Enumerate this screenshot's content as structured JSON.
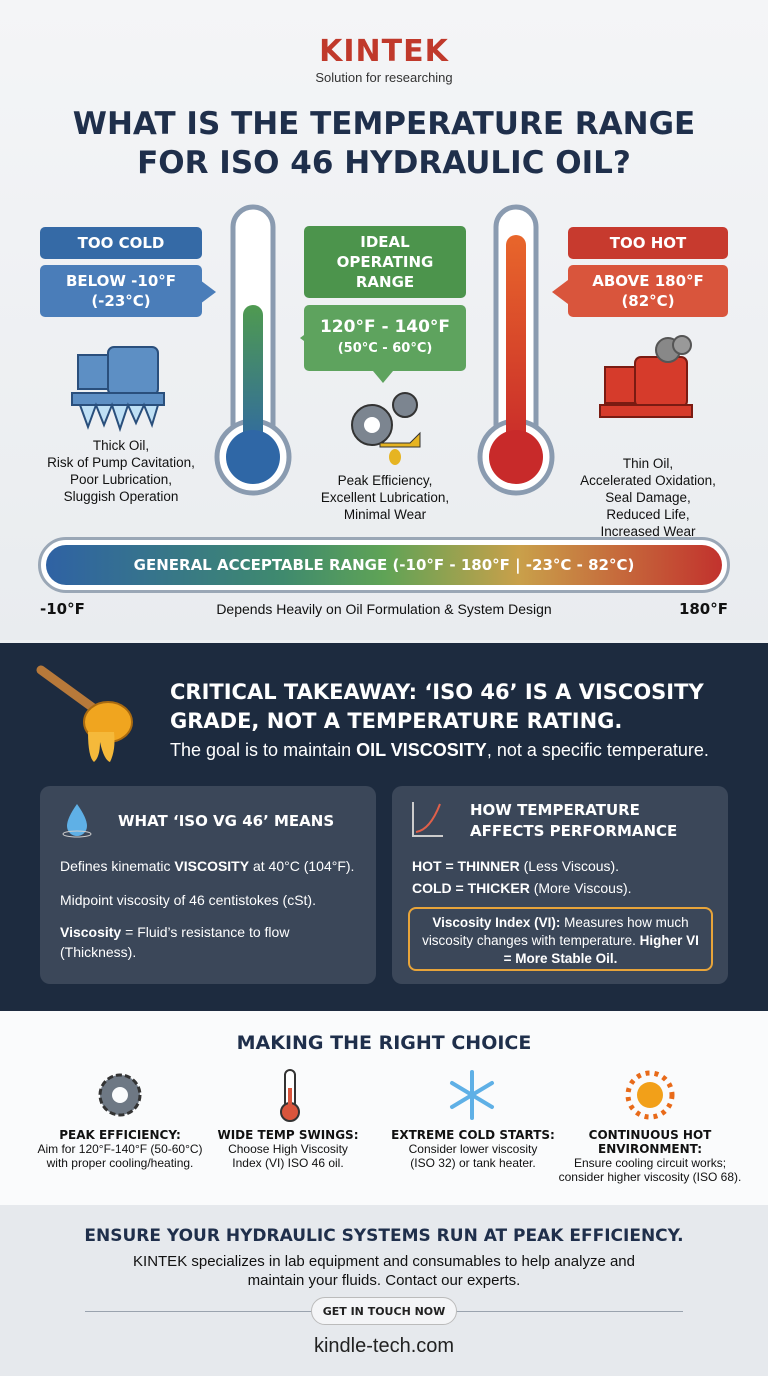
{
  "header": {
    "brand": "KINTEK",
    "tagline": "Solution for researching",
    "title": [
      "WHAT IS THE TEMPERATURE RANGE",
      "FOR ISO 46 HYDRAULIC OIL?"
    ]
  },
  "zones": {
    "cold": {
      "label": "TOO COLD",
      "range": [
        "BELOW -10°F",
        "(-23°C)"
      ],
      "description": [
        "Thick Oil,",
        "Risk of Pump Cavitation,",
        "Poor Lubrication,",
        "Sluggish Operation"
      ]
    },
    "ideal": {
      "label": [
        "IDEAL",
        "OPERATING",
        "RANGE"
      ],
      "range": [
        "120°F - 140°F",
        "(50°C - 60°C)"
      ],
      "description": [
        "Peak Efficiency,",
        "Excellent Lubrication,",
        "Minimal Wear"
      ]
    },
    "hot": {
      "label": "TOO HOT",
      "range": [
        "ABOVE 180°F",
        "(82°C)"
      ],
      "description": [
        "Thin Oil,",
        "Accelerated Oxidation,",
        "Seal Damage,",
        "Reduced Life,",
        "Increased Wear"
      ]
    }
  },
  "general": {
    "bar": "GENERAL ACCEPTABLE RANGE (-10°F - 180°F | -23°C - 82°C)",
    "left": "-10°F",
    "note": "Depends Heavily on Oil Formulation & System Design",
    "right": "180°F"
  },
  "takeaway": {
    "title": [
      "CRITICAL TAKEAWAY: ‘ISO 46’ IS A VISCOSITY",
      "GRADE, NOT A TEMPERATURE RATING."
    ],
    "subtitle": [
      "The goal is to maintain ",
      "OIL VISCOSITY",
      ", not a specific temperature."
    ],
    "cards": [
      {
        "title": [
          "WHAT ‘ISO VG 46’ MEANS"
        ],
        "items": [
          [
            "Defines kinematic ",
            "VISCOSITY",
            " at 40°C (104°F)."
          ],
          [
            "Midpoint viscosity of 46 centistokes (cSt)."
          ],
          [
            "Viscosity",
            " = Fluid’s resistance to flow (Thickness)."
          ]
        ]
      },
      {
        "title": [
          "HOW TEMPERATURE",
          "AFFECTS PERFORMANCE"
        ],
        "items": [
          [
            "HOT = THINNER",
            " (Less Viscous)."
          ],
          [
            "COLD = THICKER",
            " (More Viscous)."
          ]
        ],
        "note": [
          "Viscosity Index (VI):",
          " Measures how much viscosity changes with temperature. ",
          "Higher VI = More Stable Oil."
        ]
      }
    ]
  },
  "choice": {
    "title": "MAKING THE RIGHT CHOICE",
    "items": [
      {
        "title": [
          "PEAK EFFICIENCY:"
        ],
        "text": [
          "Aim for 120°F-140°F (50-60°C)",
          "with proper cooling/heating."
        ]
      },
      {
        "title": [
          "WIDE TEMP SWINGS:"
        ],
        "text": [
          "Choose High Viscosity",
          "Index (VI) ISO 46 oil."
        ]
      },
      {
        "title": [
          "EXTREME COLD STARTS:"
        ],
        "text": [
          "Consider lower viscosity",
          "(ISO 32) or tank heater."
        ]
      },
      {
        "title": [
          "CONTINUOUS HOT",
          "ENVIRONMENT:"
        ],
        "text": [
          "Ensure cooling circuit works;",
          "consider higher viscosity (ISO 68)."
        ]
      }
    ]
  },
  "footer": {
    "headline": "ENSURE YOUR HYDRAULIC SYSTEMS RUN AT PEAK EFFICIENCY.",
    "text": [
      "KINTEK specializes in lab equipment and consumables to help analyze and",
      "maintain your fluids. Contact our experts."
    ],
    "button": "GET IN TOUCH NOW",
    "url": "kindle-tech.com"
  }
}
